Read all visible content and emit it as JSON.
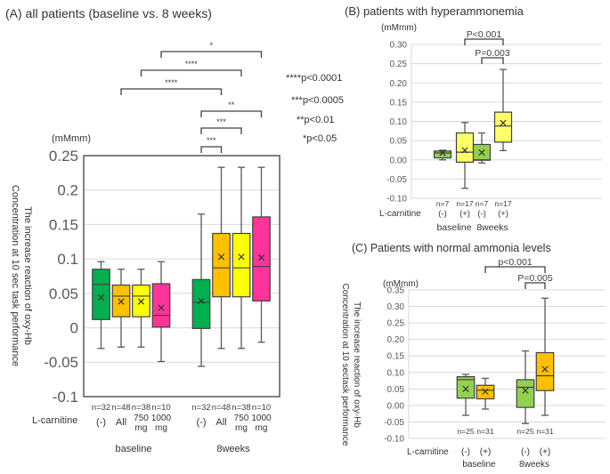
{
  "chart_data": [
    {
      "id": "A",
      "type": "boxplot",
      "title": "(A) all patients (baseline vs. 8 weeks)",
      "unit_label": "(mMmm)",
      "ylabel": [
        "The increase reaction of oxy-Hb",
        "Concentration at 10 sec task performance"
      ],
      "ylim": [
        -0.1,
        0.25
      ],
      "yticks": [
        0.25,
        0.2,
        0.15,
        0.1,
        0.05,
        0,
        -0.05,
        -0.1
      ],
      "ytick_labels": [
        "0.25",
        "0.2",
        "0.15",
        "0.1",
        "0.05",
        "0",
        "-0.05",
        "-0.1"
      ],
      "grid": true,
      "row_label": "L-carnitine",
      "groups": [
        "baseline",
        "8weeks"
      ],
      "boxes": [
        {
          "group": "baseline",
          "label": "(-)",
          "n": "n=32",
          "color": "#00B050",
          "min": -0.03,
          "q1": 0.012,
          "median": 0.063,
          "q3": 0.085,
          "max": 0.096,
          "mean": 0.044
        },
        {
          "group": "baseline",
          "label": "All",
          "n": "n=48",
          "color": "#FFC000",
          "min": -0.028,
          "q1": 0.016,
          "median": 0.046,
          "q3": 0.062,
          "max": 0.085,
          "mean": 0.038
        },
        {
          "group": "baseline",
          "label": "750\nmg",
          "n": "n=38",
          "color": "#FFFF00",
          "min": -0.028,
          "q1": 0.016,
          "median": 0.046,
          "q3": 0.062,
          "max": 0.085,
          "mean": 0.038
        },
        {
          "group": "baseline",
          "label": "1000\nmg",
          "n": "n=10",
          "color": "#FF3399",
          "min": -0.049,
          "q1": 0.001,
          "median": 0.018,
          "q3": 0.064,
          "max": 0.096,
          "mean": 0.029
        },
        {
          "group": "8weeks",
          "label": "(-)",
          "n": "n=32",
          "color": "#00B050",
          "min": -0.056,
          "q1": -0.001,
          "median": 0.037,
          "q3": 0.07,
          "max": 0.165,
          "mean": 0.039
        },
        {
          "group": "8weeks",
          "label": "All",
          "n": "n=48",
          "color": "#FFC000",
          "min": -0.03,
          "q1": 0.045,
          "median": 0.087,
          "q3": 0.137,
          "max": 0.233,
          "mean": 0.103
        },
        {
          "group": "8weeks",
          "label": "750\nmg",
          "n": "n=38",
          "color": "#FFFF00",
          "min": -0.03,
          "q1": 0.045,
          "median": 0.087,
          "q3": 0.137,
          "max": 0.233,
          "mean": 0.103
        },
        {
          "group": "8weeks",
          "label": "1000\nmg",
          "n": "n=10",
          "color": "#FF3399",
          "min": -0.021,
          "q1": 0.039,
          "median": 0.089,
          "q3": 0.161,
          "max": 0.233,
          "mean": 0.102
        }
      ],
      "brackets": [
        {
          "from": 3,
          "to": 7,
          "label": "*"
        },
        {
          "from": 2,
          "to": 6,
          "label": "****"
        },
        {
          "from": 1,
          "to": 5,
          "label": "****"
        },
        {
          "from": 4,
          "to": 7,
          "label": "**"
        },
        {
          "from": 4,
          "to": 6,
          "label": "***"
        },
        {
          "from": 4,
          "to": 5,
          "label": "***"
        }
      ],
      "legend": [
        "****p<0.0001",
        "***p<0.0005",
        "**p<0.01",
        "*p<0.05"
      ]
    },
    {
      "id": "B",
      "type": "boxplot",
      "title": "(B) patients with hyperammonemia",
      "unit_label": "(mMmm)",
      "ylim": [
        -0.1,
        0.3
      ],
      "yticks": [
        0.3,
        0.25,
        0.2,
        0.15,
        0.1,
        0.05,
        0,
        -0.05,
        -0.1
      ],
      "ytick_labels": [
        "0.30",
        "0.25",
        "0.20",
        "0.15",
        "0.10",
        "0.05",
        "0.00",
        "-0.05",
        "-0.10"
      ],
      "grid": true,
      "row_label": "L-carnitine",
      "groups": [
        "baseline",
        "8weeks"
      ],
      "boxes": [
        {
          "group": "baseline",
          "label": "(-)",
          "n": "n=7",
          "color": "#92D050",
          "min": 0.0,
          "q1": 0.005,
          "median": 0.018,
          "q3": 0.023,
          "max": 0.025,
          "mean": 0.018
        },
        {
          "group": "baseline",
          "label": "(+)",
          "n": "n=17",
          "color": "#FFFF66",
          "min": -0.074,
          "q1": -0.006,
          "median": 0.02,
          "q3": 0.07,
          "max": 0.097,
          "mean": 0.025
        },
        {
          "group": "8weeks",
          "label": "(-)",
          "n": "n=7",
          "color": "#92D050",
          "min": -0.008,
          "q1": -0.001,
          "median": 0.0,
          "q3": 0.04,
          "max": 0.07,
          "mean": 0.019
        },
        {
          "group": "8weeks",
          "label": "(+)",
          "n": "n=17",
          "color": "#FFFF66",
          "min": 0.024,
          "q1": 0.046,
          "median": 0.088,
          "q3": 0.124,
          "max": 0.235,
          "mean": 0.096
        }
      ],
      "brackets": [
        {
          "from": 1,
          "to": 3,
          "label": "P<0.001"
        },
        {
          "from": 2,
          "to": 3,
          "label": "P=0.003"
        }
      ]
    },
    {
      "id": "C",
      "type": "boxplot",
      "title": "(C) Patients with normal  ammonia levels",
      "unit_label": "(mMmm)",
      "ylabel": [
        "The increase reaction of oxy-Hb",
        "Concentration at 10 sectask performance"
      ],
      "ylim": [
        -0.1,
        0.35
      ],
      "yticks": [
        0.35,
        0.3,
        0.25,
        0.2,
        0.15,
        0.1,
        0.05,
        0,
        -0.05,
        -0.1
      ],
      "ytick_labels": [
        "0.35",
        "0.30",
        "0.25",
        "0.20",
        "0.15",
        "0.10",
        "0.05",
        "0.00",
        "-0.05",
        "-0.10"
      ],
      "grid": true,
      "row_label": "L-carnitine",
      "groups": [
        "baseline",
        "8weeks"
      ],
      "boxes": [
        {
          "group": "baseline",
          "label": "(-)",
          "n": "n=25",
          "color": "#92D050",
          "min": -0.03,
          "q1": 0.022,
          "median": 0.078,
          "q3": 0.087,
          "max": 0.094,
          "mean": 0.05
        },
        {
          "group": "baseline",
          "label": "(+)",
          "n": "n=31",
          "color": "#FFC000",
          "min": -0.011,
          "q1": 0.02,
          "median": 0.046,
          "q3": 0.061,
          "max": 0.082,
          "mean": 0.042
        },
        {
          "group": "8weeks",
          "label": "(-)",
          "n": "n=25",
          "color": "#92D050",
          "min": -0.055,
          "q1": -0.006,
          "median": 0.055,
          "q3": 0.078,
          "max": 0.165,
          "mean": 0.045
        },
        {
          "group": "8weeks",
          "label": "(+)",
          "n": "n=31",
          "color": "#FFC000",
          "min": -0.03,
          "q1": 0.045,
          "median": 0.09,
          "q3": 0.16,
          "max": 0.325,
          "mean": 0.11
        }
      ],
      "brackets": [
        {
          "from": 1,
          "to": 3,
          "label": "p<0.001"
        },
        {
          "from": 2,
          "to": 3,
          "label": "P=0.005"
        }
      ]
    }
  ]
}
